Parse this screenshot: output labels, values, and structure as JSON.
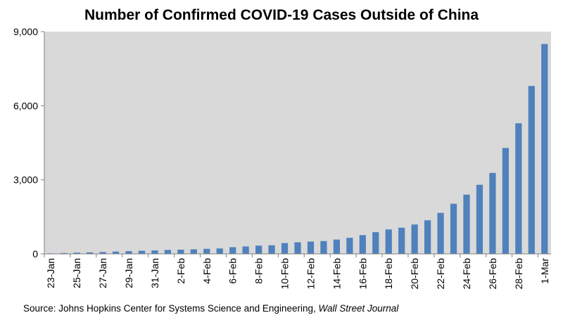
{
  "chart_data": {
    "type": "bar",
    "title": "Number of Confirmed COVID-19 Cases Outside of China",
    "xlabel": "",
    "ylabel": "",
    "ylim": [
      0,
      9000
    ],
    "yticks": [
      "0",
      "3,000",
      "6,000",
      "9,000"
    ],
    "ytick_values": [
      0,
      3000,
      6000,
      9000
    ],
    "grid": false,
    "colors": {
      "bar": "#4f81bd",
      "plot_background": "#d9d9d9",
      "axis": "#808080"
    },
    "categories": [
      "23-Jan",
      "24-Jan",
      "25-Jan",
      "26-Jan",
      "27-Jan",
      "28-Jan",
      "29-Jan",
      "30-Jan",
      "31-Jan",
      "1-Feb",
      "2-Feb",
      "3-Feb",
      "4-Feb",
      "5-Feb",
      "6-Feb",
      "7-Feb",
      "8-Feb",
      "9-Feb",
      "10-Feb",
      "11-Feb",
      "12-Feb",
      "13-Feb",
      "14-Feb",
      "15-Feb",
      "16-Feb",
      "17-Feb",
      "18-Feb",
      "19-Feb",
      "20-Feb",
      "21-Feb",
      "22-Feb",
      "23-Feb",
      "24-Feb",
      "25-Feb",
      "26-Feb",
      "27-Feb",
      "28-Feb",
      "29-Feb",
      "1-Mar"
    ],
    "tick_labels": [
      "23-Jan",
      "25-Jan",
      "27-Jan",
      "29-Jan",
      "31-Jan",
      "2-Feb",
      "4-Feb",
      "6-Feb",
      "8-Feb",
      "10-Feb",
      "12-Feb",
      "14-Feb",
      "16-Feb",
      "18-Feb",
      "20-Feb",
      "22-Feb",
      "24-Feb",
      "26-Feb",
      "28-Feb",
      "1-Mar"
    ],
    "values": [
      20,
      35,
      50,
      60,
      75,
      95,
      110,
      125,
      140,
      160,
      170,
      185,
      205,
      220,
      270,
      300,
      335,
      350,
      440,
      470,
      500,
      520,
      580,
      650,
      760,
      880,
      990,
      1060,
      1190,
      1360,
      1660,
      2030,
      2400,
      2800,
      3280,
      4290,
      5290,
      6800,
      8500
    ]
  },
  "source": {
    "text": "Source: Johns Hopkins Center for Systems Science and Engineering, ",
    "italic": "Wall Street Journal"
  }
}
